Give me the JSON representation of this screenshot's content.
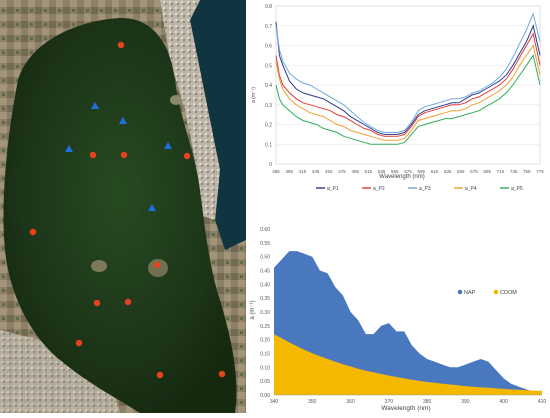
{
  "map": {
    "colors": {
      "station_circle": "#e8421e",
      "station_triangle": "#1f6fe0",
      "water": "#1e3a1a",
      "land": "#8a7a60"
    },
    "circle_markers": 15,
    "triangle_markers": 5
  },
  "chart_data": [
    {
      "type": "line",
      "title": "",
      "xlabel": "Wavelength (nm)",
      "ylabel": "a (m⁻¹)",
      "xlim": [
        385,
        775
      ],
      "ylim": [
        0,
        0.8
      ],
      "x_ticks": [
        "385",
        "395",
        "415",
        "435",
        "455",
        "475",
        "495",
        "515",
        "535",
        "555",
        "575",
        "595",
        "615",
        "635",
        "655",
        "675",
        "695",
        "715",
        "735",
        "755",
        "775"
      ],
      "y_ticks": [
        "0",
        "0.1",
        "0.2",
        "0.3",
        "0.4",
        "0.5",
        "0.6",
        "0.7",
        "0.8"
      ],
      "legend_position": "bottom",
      "x": [
        385,
        390,
        395,
        405,
        415,
        425,
        435,
        445,
        455,
        465,
        475,
        485,
        495,
        505,
        515,
        525,
        535,
        545,
        555,
        565,
        575,
        585,
        595,
        605,
        615,
        625,
        635,
        645,
        655,
        665,
        675,
        685,
        695,
        705,
        715,
        725,
        735,
        745,
        755,
        765,
        775
      ],
      "series": [
        {
          "name": "a_P1",
          "color": "#2b3a8f",
          "values": [
            0.72,
            0.55,
            0.5,
            0.42,
            0.38,
            0.36,
            0.35,
            0.34,
            0.33,
            0.31,
            0.29,
            0.27,
            0.24,
            0.22,
            0.2,
            0.18,
            0.16,
            0.15,
            0.15,
            0.15,
            0.16,
            0.2,
            0.25,
            0.27,
            0.28,
            0.29,
            0.3,
            0.31,
            0.31,
            0.33,
            0.35,
            0.36,
            0.38,
            0.4,
            0.42,
            0.45,
            0.5,
            0.56,
            0.62,
            0.7,
            0.55
          ]
        },
        {
          "name": "a_P2",
          "color": "#e03b35",
          "values": [
            0.55,
            0.45,
            0.4,
            0.36,
            0.33,
            0.31,
            0.3,
            0.29,
            0.28,
            0.27,
            0.25,
            0.24,
            0.22,
            0.2,
            0.18,
            0.17,
            0.15,
            0.14,
            0.14,
            0.14,
            0.15,
            0.19,
            0.24,
            0.26,
            0.27,
            0.28,
            0.29,
            0.3,
            0.3,
            0.31,
            0.33,
            0.34,
            0.36,
            0.38,
            0.4,
            0.43,
            0.48,
            0.54,
            0.6,
            0.66,
            0.5
          ]
        },
        {
          "name": "a_P3",
          "color": "#6fa8dc",
          "values": [
            0.7,
            0.58,
            0.52,
            0.46,
            0.43,
            0.41,
            0.4,
            0.38,
            0.36,
            0.34,
            0.32,
            0.3,
            0.27,
            0.24,
            0.21,
            0.19,
            0.17,
            0.16,
            0.16,
            0.16,
            0.17,
            0.21,
            0.27,
            0.29,
            0.3,
            0.31,
            0.32,
            0.33,
            0.33,
            0.34,
            0.36,
            0.37,
            0.39,
            0.41,
            0.44,
            0.48,
            0.54,
            0.61,
            0.68,
            0.76,
            0.62
          ]
        },
        {
          "name": "a_P4",
          "color": "#f0a030",
          "values": [
            0.52,
            0.43,
            0.38,
            0.33,
            0.3,
            0.28,
            0.26,
            0.25,
            0.24,
            0.22,
            0.2,
            0.19,
            0.17,
            0.16,
            0.15,
            0.14,
            0.13,
            0.12,
            0.12,
            0.12,
            0.13,
            0.17,
            0.22,
            0.23,
            0.24,
            0.25,
            0.26,
            0.27,
            0.27,
            0.28,
            0.3,
            0.31,
            0.33,
            0.35,
            0.37,
            0.4,
            0.44,
            0.5,
            0.55,
            0.6,
            0.45
          ]
        },
        {
          "name": "a_P5",
          "color": "#2fae5a",
          "values": [
            0.4,
            0.33,
            0.3,
            0.27,
            0.24,
            0.22,
            0.21,
            0.2,
            0.18,
            0.17,
            0.16,
            0.14,
            0.13,
            0.12,
            0.11,
            0.1,
            0.1,
            0.1,
            0.1,
            0.1,
            0.11,
            0.15,
            0.19,
            0.2,
            0.21,
            0.22,
            0.23,
            0.23,
            0.24,
            0.25,
            0.26,
            0.27,
            0.29,
            0.31,
            0.33,
            0.36,
            0.4,
            0.45,
            0.5,
            0.55,
            0.4
          ]
        }
      ]
    },
    {
      "type": "area",
      "title": "",
      "xlabel": "Wavelength (nm)",
      "ylabel": "a (m⁻¹)",
      "xlim": [
        340,
        410
      ],
      "ylim": [
        0,
        0.6
      ],
      "x_ticks": [
        "340",
        "350",
        "360",
        "370",
        "380",
        "390",
        "400",
        "410"
      ],
      "y_ticks": [
        "0.00",
        "0.05",
        "0.10",
        "0.15",
        "0.20",
        "0.25",
        "0.30",
        "0.35",
        "0.40",
        "0.45",
        "0.50",
        "0.55",
        "0.60"
      ],
      "legend_position": "right",
      "x": [
        340,
        342,
        344,
        346,
        348,
        350,
        352,
        354,
        356,
        358,
        360,
        362,
        364,
        366,
        368,
        370,
        372,
        374,
        376,
        378,
        380,
        382,
        384,
        386,
        388,
        390,
        392,
        394,
        396,
        398,
        400,
        402,
        404,
        406,
        408,
        410
      ],
      "series": [
        {
          "name": "NAP",
          "color": "#4a78be",
          "values": [
            0.46,
            0.49,
            0.52,
            0.52,
            0.51,
            0.5,
            0.45,
            0.44,
            0.39,
            0.36,
            0.3,
            0.27,
            0.22,
            0.22,
            0.25,
            0.26,
            0.23,
            0.23,
            0.18,
            0.15,
            0.13,
            0.12,
            0.11,
            0.1,
            0.1,
            0.11,
            0.12,
            0.13,
            0.12,
            0.09,
            0.06,
            0.04,
            0.03,
            0.02,
            0.01,
            0.0
          ]
        },
        {
          "name": "CDOM",
          "color": "#f5b800",
          "values": [
            0.22,
            0.205,
            0.19,
            0.176,
            0.163,
            0.151,
            0.14,
            0.13,
            0.12,
            0.111,
            0.103,
            0.095,
            0.088,
            0.082,
            0.076,
            0.07,
            0.065,
            0.06,
            0.055,
            0.051,
            0.047,
            0.044,
            0.041,
            0.038,
            0.035,
            0.032,
            0.03,
            0.028,
            0.026,
            0.024,
            0.022,
            0.02,
            0.019,
            0.017,
            0.016,
            0.015
          ]
        }
      ]
    }
  ]
}
